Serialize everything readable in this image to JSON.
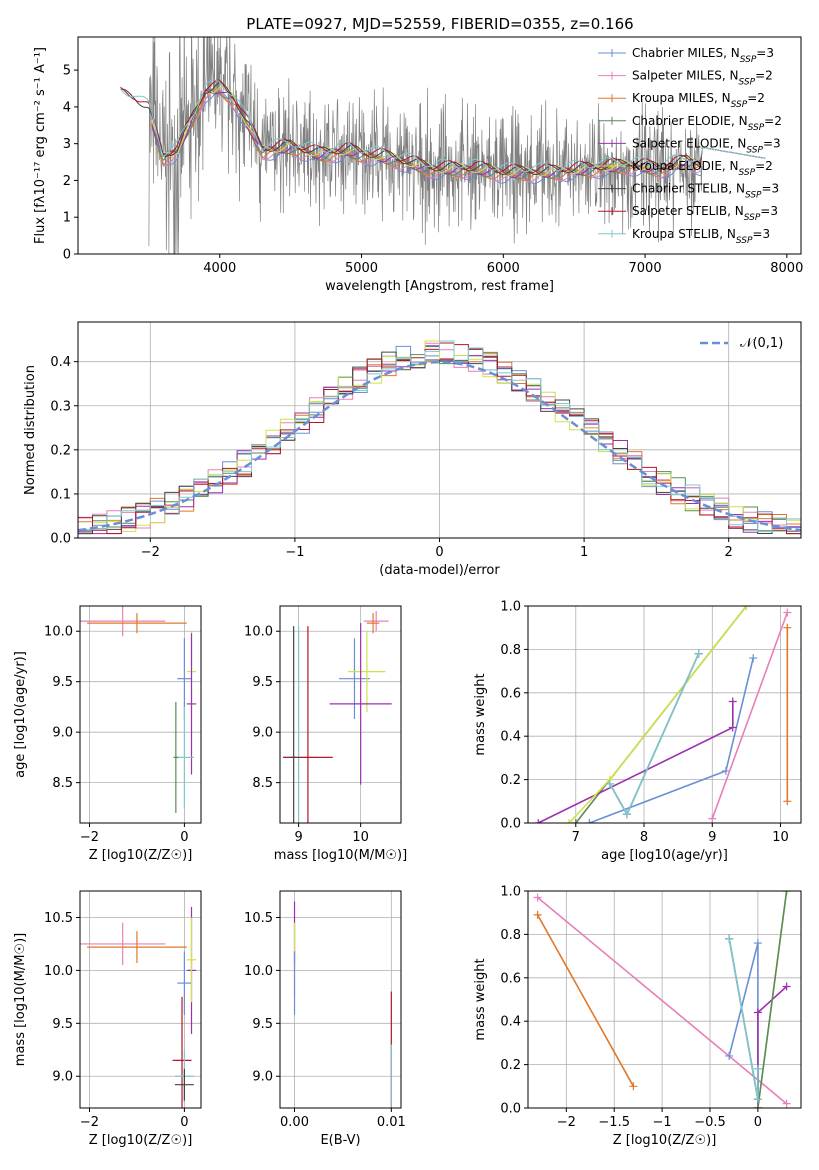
{
  "figure_title": "PLATE=0927, MJD=52559, FIBERID=0355, z=0.166",
  "colors": {
    "Chabrier MILES": "#6a8fd6",
    "Salpeter MILES": "#e77fb8",
    "Kroupa MILES": "#e0782a",
    "Chabrier ELODIE": "#5a8a5a",
    "Salpeter ELODIE": "#9b30b0",
    "Kroupa ELODIE": "#cfe24a",
    "Chabrier STELIB": "#444444",
    "Salpeter STELIB": "#b0182a",
    "Kroupa STELIB": "#7ec8d0",
    "data": "#808080",
    "normal": "#6a8fd6"
  },
  "chart_data": [
    {
      "id": "spectrum",
      "type": "line",
      "title": "PLATE=0927, MJD=52559, FIBERID=0355, z=0.166",
      "xlabel": "wavelength [Angstrom, rest frame]",
      "ylabel": "Flux [fλ10⁻¹⁷ erg cm⁻² s⁻¹ A⁻¹]",
      "xlim": [
        3000,
        8100
      ],
      "ylim": [
        0,
        5.9
      ],
      "xticks": [
        4000,
        5000,
        6000,
        7000,
        8000
      ],
      "yticks": [
        0,
        1,
        2,
        3,
        4,
        5
      ],
      "legend_position": "top-right",
      "legend": [
        "Chabrier MILES, NSSP=3",
        "Salpeter MILES, NSSP=2",
        "Kroupa MILES, NSSP=2",
        "Chabrier ELODIE, NSSP=2",
        "Salpeter ELODIE, NSSP=3",
        "Kroupa ELODIE, NSSP=2",
        "Chabrier STELIB, NSSP=3",
        "Salpeter STELIB, NSSP=3",
        "Kroupa STELIB, NSSP=3"
      ],
      "model_x": [
        3300,
        3400,
        3500,
        3600,
        3700,
        3800,
        3900,
        4000,
        4100,
        4200,
        4300,
        4500,
        4700,
        4900,
        5000,
        5200,
        5500,
        5800,
        6000,
        6300,
        6600,
        6900,
        7100,
        7300,
        7400
      ],
      "model_y": [
        4.3,
        4.2,
        3.9,
        2.6,
        2.8,
        3.6,
        4.4,
        4.5,
        4.2,
        3.5,
        2.8,
        2.9,
        2.7,
        2.8,
        2.7,
        2.6,
        2.3,
        2.3,
        2.2,
        2.2,
        2.3,
        2.4,
        2.3,
        2.5,
        2.4
      ],
      "noise_wave_range": [
        3500,
        7400
      ]
    },
    {
      "id": "residuals",
      "type": "histogram",
      "xlabel": "(data-model)/error",
      "ylabel": "Normed distribution",
      "xlim": [
        -2.5,
        2.5
      ],
      "ylim": [
        0,
        0.49
      ],
      "xticks": [
        -2,
        -1,
        0,
        1,
        2
      ],
      "yticks": [
        0.0,
        0.1,
        0.2,
        0.3,
        0.4
      ],
      "legend": [
        "𝒩(0,1)"
      ],
      "legend_position": "top-right",
      "bin_width": 0.1
    },
    {
      "id": "age_vs_Z",
      "type": "scatter",
      "xlabel": "Z [log10(Z/Z☉)]",
      "ylabel": "age  [log10(age/yr)]",
      "xlim": [
        -2.2,
        0.35
      ],
      "ylim": [
        8.1,
        10.25
      ],
      "xticks": [
        -2,
        0
      ],
      "yticks": [
        8.5,
        9.0,
        9.5,
        10.0
      ],
      "points": [
        {
          "model": "Salpeter MILES",
          "x": -1.3,
          "y": 10.1,
          "xerr": 0.9,
          "yerr": 0.15
        },
        {
          "model": "Kroupa MILES",
          "x": -1.0,
          "y": 10.08,
          "xerr": 1.05,
          "yerr": 0.1
        },
        {
          "model": "Chabrier MILES",
          "x": 0.0,
          "y": 9.53,
          "xerr": 0.15,
          "yerr": 0.4
        },
        {
          "model": "Kroupa ELODIE",
          "x": 0.15,
          "y": 9.6,
          "xerr": 0.1,
          "yerr": 0.4
        },
        {
          "model": "Salpeter ELODIE",
          "x": 0.15,
          "y": 9.28,
          "xerr": 0.1,
          "yerr": 0.7
        },
        {
          "model": "Kroupa STELIB",
          "x": 0.0,
          "y": 8.75,
          "xerr": 0.2,
          "yerr": 0.5
        },
        {
          "model": "Chabrier ELODIE",
          "x": -0.18,
          "y": 8.75,
          "xerr": 0.05,
          "yerr": 0.55
        }
      ]
    },
    {
      "id": "age_vs_mass",
      "type": "scatter",
      "xlabel": "mass [log10(M/M☉)]",
      "ylabel": "",
      "xlim": [
        8.7,
        10.65
      ],
      "ylim": [
        8.1,
        10.25
      ],
      "xticks": [
        9,
        10
      ],
      "yticks": [
        8.5,
        9.0,
        9.5,
        10.0
      ],
      "points": [
        {
          "model": "Salpeter MILES",
          "x": 10.25,
          "y": 10.1,
          "xerr": 0.2,
          "yerr": 0.1
        },
        {
          "model": "Kroupa MILES",
          "x": 10.2,
          "y": 10.08,
          "xerr": 0.1,
          "yerr": 0.1
        },
        {
          "model": "Chabrier MILES",
          "x": 9.9,
          "y": 9.53,
          "xerr": 0.25,
          "yerr": 0.4
        },
        {
          "model": "Kroupa ELODIE",
          "x": 10.1,
          "y": 9.6,
          "xerr": 0.3,
          "yerr": 0.4
        },
        {
          "model": "Salpeter ELODIE",
          "x": 10.0,
          "y": 9.28,
          "xerr": 0.5,
          "yerr": 0.8
        },
        {
          "model": "Kroupa STELIB",
          "x": 9.0,
          "y": 8.75,
          "xerr": 0.25,
          "yerr": 1.3
        },
        {
          "model": "Salpeter STELIB",
          "x": 9.15,
          "y": 8.75,
          "xerr": 0.4,
          "yerr": 1.3
        },
        {
          "model": "Chabrier STELIB",
          "x": 8.92,
          "y": 8.75,
          "xerr": 0.05,
          "yerr": 1.3
        }
      ]
    },
    {
      "id": "weight_vs_age",
      "type": "line",
      "xlabel": "age  [log10(age/yr)]",
      "ylabel": "mass weight",
      "xlim": [
        6.3,
        10.3
      ],
      "ylim": [
        0,
        1.0
      ],
      "xticks": [
        7,
        8,
        9,
        10
      ],
      "yticks": [
        0.0,
        0.2,
        0.4,
        0.6,
        0.8,
        1.0
      ],
      "series": [
        {
          "model": "Chabrier MILES",
          "x": [
            7.2,
            9.2,
            9.6
          ],
          "y": [
            0.0,
            0.24,
            0.76
          ]
        },
        {
          "model": "Salpeter MILES",
          "x": [
            9.0,
            10.1
          ],
          "y": [
            0.02,
            0.97
          ]
        },
        {
          "model": "Kroupa MILES",
          "x": [
            10.1,
            10.1
          ],
          "y": [
            0.1,
            0.9
          ]
        },
        {
          "model": "Chabrier ELODIE",
          "x": [
            7.0,
            9.5
          ],
          "y": [
            0.0,
            1.0
          ]
        },
        {
          "model": "Salpeter ELODIE",
          "x": [
            6.45,
            9.3,
            9.3
          ],
          "y": [
            0.0,
            0.44,
            0.56
          ]
        },
        {
          "model": "Kroupa ELODIE",
          "x": [
            6.9,
            7.5,
            9.5
          ],
          "y": [
            0.0,
            0.2,
            1.0
          ]
        },
        {
          "model": "Chabrier STELIB",
          "x": [
            7.5,
            7.75,
            8.8
          ],
          "y": [
            0.18,
            0.04,
            0.78
          ]
        },
        {
          "model": "Kroupa STELIB",
          "x": [
            7.5,
            7.75,
            8.8
          ],
          "y": [
            0.18,
            0.04,
            0.78
          ]
        }
      ]
    },
    {
      "id": "mass_vs_Z",
      "type": "scatter",
      "xlabel": "Z [log10(Z/Z☉)]",
      "ylabel": "mass [log10(M/M☉)]",
      "xlim": [
        -2.2,
        0.35
      ],
      "ylim": [
        8.7,
        10.75
      ],
      "xticks": [
        -2,
        0
      ],
      "yticks": [
        9.0,
        9.5,
        10.0,
        10.5
      ],
      "points": [
        {
          "model": "Salpeter MILES",
          "x": -1.3,
          "y": 10.25,
          "xerr": 0.9,
          "yerr": 0.2
        },
        {
          "model": "Kroupa MILES",
          "x": -1.0,
          "y": 10.22,
          "xerr": 1.05,
          "yerr": 0.15
        },
        {
          "model": "Chabrier MILES",
          "x": 0.0,
          "y": 9.88,
          "xerr": 0.15,
          "yerr": 0.3
        },
        {
          "model": "Salpeter ELODIE",
          "x": 0.15,
          "y": 10.0,
          "xerr": 0.1,
          "yerr": 0.6
        },
        {
          "model": "Kroupa ELODIE",
          "x": 0.15,
          "y": 10.1,
          "xerr": 0.1,
          "yerr": 0.4
        },
        {
          "model": "Salpeter STELIB",
          "x": -0.05,
          "y": 9.15,
          "xerr": 0.2,
          "yerr": 0.6
        },
        {
          "model": "Kroupa STELIB",
          "x": 0.0,
          "y": 9.0,
          "xerr": 0.2,
          "yerr": 0.25
        },
        {
          "model": "Chabrier STELIB",
          "x": 0.0,
          "y": 8.92,
          "xerr": 0.2,
          "yerr": 0.15
        }
      ]
    },
    {
      "id": "mass_vs_EBV",
      "type": "scatter",
      "xlabel": "E(B-V)",
      "ylabel": "",
      "xlim": [
        -0.0015,
        0.011
      ],
      "ylim": [
        8.7,
        10.75
      ],
      "xticks": [
        0.0,
        0.01
      ],
      "xticklabels": [
        "0.00",
        "0.01"
      ],
      "yticks": [
        9.0,
        9.5,
        10.0,
        10.5
      ],
      "points": [
        {
          "model": "Salpeter ELODIE",
          "x": 0.0,
          "y": 10.35,
          "xerr": 0.0,
          "yerr": 0.3
        },
        {
          "model": "Kroupa ELODIE",
          "x": 0.0,
          "y": 10.1,
          "xerr": 0.0,
          "yerr": 0.35
        },
        {
          "model": "Chabrier MILES",
          "x": 0.0,
          "y": 9.88,
          "xerr": 0.0,
          "yerr": 0.3
        },
        {
          "model": "Salpeter STELIB",
          "x": 0.01,
          "y": 9.15,
          "xerr": 0.0,
          "yerr": 0.65
        },
        {
          "model": "Kroupa STELIB",
          "x": 0.01,
          "y": 9.0,
          "xerr": 0.0,
          "yerr": 0.3
        }
      ]
    },
    {
      "id": "weight_vs_Z",
      "type": "line",
      "xlabel": "Z [log10(Z/Z☉)]",
      "ylabel": "mass weight",
      "xlim": [
        -2.4,
        0.45
      ],
      "ylim": [
        0,
        1.0
      ],
      "xticks": [
        -2.0,
        -1.5,
        -1.0,
        -0.5,
        0.0
      ],
      "yticks": [
        0.0,
        0.2,
        0.4,
        0.6,
        0.8,
        1.0
      ],
      "series": [
        {
          "model": "Salpeter MILES",
          "x": [
            -2.3,
            0.3
          ],
          "y": [
            0.97,
            0.02
          ]
        },
        {
          "model": "Kroupa MILES",
          "x": [
            -2.3,
            -1.3
          ],
          "y": [
            0.89,
            0.1
          ]
        },
        {
          "model": "Chabrier MILES",
          "x": [
            -0.3,
            0.0,
            0.0
          ],
          "y": [
            0.24,
            0.76,
            0.0
          ]
        },
        {
          "model": "Salpeter ELODIE",
          "x": [
            0.0,
            0.0,
            0.3
          ],
          "y": [
            0.0,
            0.44,
            0.56
          ]
        },
        {
          "model": "Kroupa ELODIE",
          "x": [
            0.0,
            0.3
          ],
          "y": [
            0.0,
            1.0
          ]
        },
        {
          "model": "Chabrier ELODIE",
          "x": [
            0.0,
            0.3
          ],
          "y": [
            0.0,
            1.0
          ]
        },
        {
          "model": "Chabrier STELIB",
          "x": [
            -0.3,
            0.0,
            0.0
          ],
          "y": [
            0.78,
            0.04,
            0.18
          ]
        },
        {
          "model": "Kroupa STELIB",
          "x": [
            -0.3,
            0.0,
            0.0
          ],
          "y": [
            0.78,
            0.04,
            0.18
          ]
        }
      ]
    }
  ]
}
